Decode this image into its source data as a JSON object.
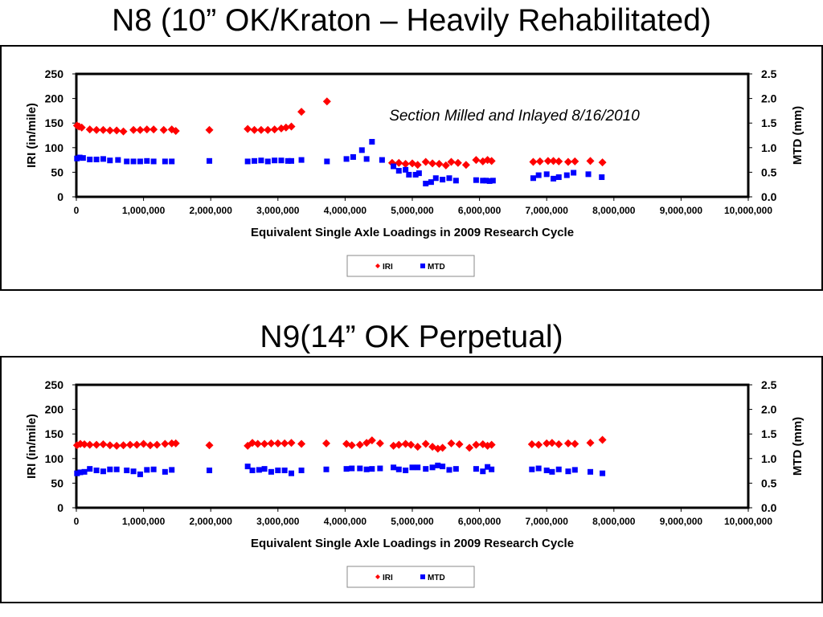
{
  "slides": [
    {
      "title": "N8 (10” OK/Kraton – Heavily Rehabilitated)"
    },
    {
      "title": "N9(14” OK Perpetual)"
    }
  ],
  "colors": {
    "iri": "#ff0000",
    "mtd": "#0000ff"
  },
  "chart_data": [
    {
      "type": "scatter",
      "title": "",
      "xlabel": "Equivalent Single Axle Loadings in 2009 Research Cycle",
      "ylabel": "IRI (in/mile)",
      "y2label": "MTD (mm)",
      "xlim": [
        0,
        10000000
      ],
      "ylim": [
        0,
        250
      ],
      "y2lim": [
        0,
        2.5
      ],
      "x_ticks": [
        "0",
        "1,000,000",
        "2,000,000",
        "3,000,000",
        "4,000,000",
        "5,000,000",
        "6,000,000",
        "7,000,000",
        "8,000,000",
        "9,000,000",
        "10,000,000"
      ],
      "y_ticks": [
        "0",
        "50",
        "100",
        "150",
        "200",
        "250"
      ],
      "y2_ticks": [
        "0.0",
        "0.5",
        "1.0",
        "1.5",
        "2.0",
        "2.5"
      ],
      "annotation": "Section Milled and Inlayed 8/16/2010",
      "legend_position": "bottom",
      "grid": false,
      "series": [
        {
          "name": "IRI",
          "axis": "left",
          "marker": "diamond",
          "color": "#ff0000",
          "x": [
            10000,
            40000,
            80000,
            200000,
            300000,
            400000,
            500000,
            600000,
            700000,
            850000,
            950000,
            1050000,
            1150000,
            1300000,
            1420000,
            1480000,
            1980000,
            2550000,
            2650000,
            2750000,
            2850000,
            2950000,
            3050000,
            3120000,
            3200000,
            3350000,
            3730000,
            4700000,
            4800000,
            4900000,
            5000000,
            5080000,
            5200000,
            5300000,
            5400000,
            5500000,
            5580000,
            5680000,
            5800000,
            5950000,
            6050000,
            6120000,
            6180000,
            6800000,
            6900000,
            7020000,
            7100000,
            7180000,
            7320000,
            7420000,
            7650000,
            7830000
          ],
          "y": [
            145,
            143,
            141,
            137,
            136,
            136,
            135,
            135,
            133,
            136,
            136,
            137,
            137,
            136,
            137,
            134,
            136,
            138,
            136,
            136,
            136,
            137,
            139,
            141,
            143,
            173,
            194,
            69,
            69,
            67,
            68,
            65,
            71,
            68,
            67,
            64,
            71,
            69,
            65,
            75,
            72,
            75,
            73,
            71,
            72,
            73,
            73,
            72,
            71,
            72,
            73,
            70
          ]
        },
        {
          "name": "MTD",
          "axis": "right",
          "marker": "square",
          "color": "#0000ff",
          "x": [
            10000,
            50000,
            100000,
            200000,
            300000,
            400000,
            500000,
            620000,
            750000,
            850000,
            950000,
            1050000,
            1150000,
            1320000,
            1420000,
            1980000,
            2550000,
            2650000,
            2750000,
            2850000,
            2950000,
            3050000,
            3150000,
            3200000,
            3350000,
            3730000,
            4020000,
            4120000,
            4250000,
            4320000,
            4400000,
            4550000,
            4720000,
            4800000,
            4900000,
            4950000,
            5050000,
            5100000,
            5200000,
            5280000,
            5350000,
            5450000,
            5550000,
            5650000,
            5950000,
            6050000,
            6100000,
            6150000,
            6200000,
            6800000,
            6880000,
            7000000,
            7100000,
            7180000,
            7300000,
            7400000,
            7620000,
            7820000
          ],
          "y": [
            0.78,
            0.8,
            0.79,
            0.76,
            0.76,
            0.77,
            0.74,
            0.75,
            0.72,
            0.72,
            0.72,
            0.73,
            0.72,
            0.72,
            0.72,
            0.73,
            0.72,
            0.73,
            0.74,
            0.72,
            0.74,
            0.74,
            0.73,
            0.73,
            0.75,
            0.72,
            0.77,
            0.81,
            0.95,
            0.77,
            1.12,
            0.75,
            0.62,
            0.53,
            0.55,
            0.45,
            0.45,
            0.48,
            0.27,
            0.3,
            0.38,
            0.35,
            0.38,
            0.33,
            0.34,
            0.33,
            0.33,
            0.32,
            0.33,
            0.38,
            0.44,
            0.46,
            0.37,
            0.4,
            0.44,
            0.49,
            0.46,
            0.4
          ]
        }
      ]
    },
    {
      "type": "scatter",
      "title": "",
      "xlabel": "Equivalent Single Axle Loadings in 2009 Research Cycle",
      "ylabel": "IRI (in/mile)",
      "y2label": "MTD (mm)",
      "xlim": [
        0,
        10000000
      ],
      "ylim": [
        0,
        250
      ],
      "y2lim": [
        0,
        2.5
      ],
      "x_ticks": [
        "0",
        "1,000,000",
        "2,000,000",
        "3,000,000",
        "4,000,000",
        "5,000,000",
        "6,000,000",
        "7,000,000",
        "8,000,000",
        "9,000,000",
        "10,000,000"
      ],
      "y_ticks": [
        "0",
        "50",
        "100",
        "150",
        "200",
        "250"
      ],
      "y2_ticks": [
        "0.0",
        "0.5",
        "1.0",
        "1.5",
        "2.0",
        "2.5"
      ],
      "annotation": "",
      "legend_position": "bottom",
      "grid": false,
      "series": [
        {
          "name": "IRI",
          "axis": "left",
          "marker": "diamond",
          "color": "#ff0000",
          "x": [
            10000,
            60000,
            120000,
            200000,
            300000,
            400000,
            500000,
            600000,
            700000,
            800000,
            900000,
            1000000,
            1100000,
            1200000,
            1320000,
            1420000,
            1480000,
            1980000,
            2550000,
            2620000,
            2700000,
            2800000,
            2900000,
            3000000,
            3100000,
            3200000,
            3350000,
            3720000,
            4020000,
            4100000,
            4220000,
            4320000,
            4400000,
            4520000,
            4720000,
            4800000,
            4900000,
            4980000,
            5080000,
            5200000,
            5300000,
            5380000,
            5450000,
            5580000,
            5700000,
            5850000,
            5950000,
            6050000,
            6120000,
            6180000,
            6780000,
            6880000,
            7000000,
            7080000,
            7180000,
            7320000,
            7420000,
            7650000,
            7830000
          ],
          "y": [
            127,
            130,
            129,
            128,
            128,
            129,
            127,
            126,
            127,
            128,
            128,
            130,
            127,
            128,
            130,
            131,
            131,
            127,
            126,
            132,
            130,
            130,
            131,
            131,
            131,
            132,
            130,
            131,
            130,
            127,
            128,
            132,
            137,
            131,
            126,
            128,
            130,
            128,
            124,
            130,
            124,
            120,
            122,
            131,
            129,
            122,
            128,
            129,
            126,
            128,
            129,
            128,
            131,
            132,
            129,
            131,
            130,
            132,
            138
          ]
        },
        {
          "name": "MTD",
          "axis": "right",
          "marker": "square",
          "color": "#0000ff",
          "x": [
            10000,
            60000,
            120000,
            200000,
            300000,
            400000,
            500000,
            600000,
            750000,
            850000,
            950000,
            1050000,
            1150000,
            1320000,
            1420000,
            1980000,
            2550000,
            2620000,
            2720000,
            2800000,
            2900000,
            3000000,
            3100000,
            3200000,
            3350000,
            3720000,
            4020000,
            4100000,
            4220000,
            4320000,
            4400000,
            4520000,
            4720000,
            4800000,
            4900000,
            5000000,
            5080000,
            5200000,
            5300000,
            5380000,
            5450000,
            5550000,
            5650000,
            5950000,
            6050000,
            6120000,
            6180000,
            6780000,
            6880000,
            7000000,
            7080000,
            7180000,
            7320000,
            7420000,
            7650000,
            7830000
          ],
          "y": [
            0.7,
            0.72,
            0.73,
            0.79,
            0.76,
            0.74,
            0.78,
            0.78,
            0.76,
            0.74,
            0.68,
            0.77,
            0.78,
            0.73,
            0.77,
            0.76,
            0.84,
            0.76,
            0.77,
            0.79,
            0.73,
            0.76,
            0.76,
            0.7,
            0.76,
            0.78,
            0.79,
            0.8,
            0.8,
            0.78,
            0.79,
            0.8,
            0.82,
            0.78,
            0.76,
            0.82,
            0.82,
            0.79,
            0.82,
            0.86,
            0.84,
            0.77,
            0.79,
            0.79,
            0.74,
            0.83,
            0.78,
            0.78,
            0.8,
            0.76,
            0.73,
            0.78,
            0.74,
            0.77,
            0.73,
            0.7
          ]
        }
      ]
    }
  ]
}
